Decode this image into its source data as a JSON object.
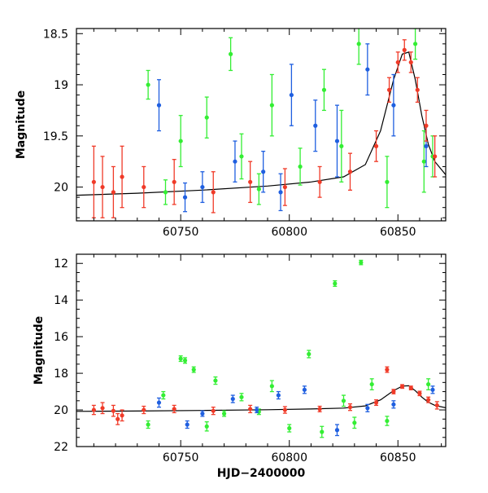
{
  "chart_data": [
    {
      "type": "scatter",
      "panel": "top",
      "xlabel": "",
      "ylabel": "Magnitude",
      "xlim": [
        60702,
        60872
      ],
      "ylim": [
        20.33,
        18.45
      ],
      "y_inverted": true,
      "x_ticks": [
        60750,
        60800,
        60850
      ],
      "x_tick_labels": [
        "60750",
        "60800",
        "60850"
      ],
      "y_ticks": [
        18.5,
        19,
        19.5,
        20
      ],
      "y_tick_labels": [
        "18.5",
        "19",
        "19.5",
        "20"
      ],
      "grid": false,
      "legend": "none",
      "model_curve": {
        "x": [
          60702,
          60730,
          60760,
          60790,
          60810,
          60825,
          60835,
          60842,
          60848,
          60852,
          60855,
          60858,
          60861,
          60864,
          60867,
          60872
        ],
        "y": [
          20.08,
          20.06,
          20.03,
          19.99,
          19.95,
          19.9,
          19.78,
          19.45,
          18.95,
          18.7,
          18.68,
          18.95,
          19.3,
          19.58,
          19.75,
          19.88
        ]
      },
      "series": [
        {
          "color": "#33ee33",
          "points": [
            {
              "x": 60735,
              "y": 19.0,
              "err": 0.14
            },
            {
              "x": 60750,
              "y": 19.55,
              "err": 0.25
            },
            {
              "x": 60762,
              "y": 19.32,
              "err": 0.2
            },
            {
              "x": 60773,
              "y": 18.7,
              "err": 0.16
            },
            {
              "x": 60778,
              "y": 19.7,
              "err": 0.22
            },
            {
              "x": 60792,
              "y": 19.2,
              "err": 0.3
            },
            {
              "x": 60805,
              "y": 19.8,
              "err": 0.18
            },
            {
              "x": 60816,
              "y": 19.05,
              "err": 0.2
            },
            {
              "x": 60824,
              "y": 19.6,
              "err": 0.35
            },
            {
              "x": 60832,
              "y": 18.6,
              "err": 0.2
            },
            {
              "x": 60845,
              "y": 19.95,
              "err": 0.25
            },
            {
              "x": 60858,
              "y": 18.6,
              "err": 0.15
            },
            {
              "x": 60862,
              "y": 19.75,
              "err": 0.3
            },
            {
              "x": 60866,
              "y": 19.7,
              "err": 0.2
            },
            {
              "x": 60743,
              "y": 20.05,
              "err": 0.12
            },
            {
              "x": 60786,
              "y": 20.02,
              "err": 0.15
            }
          ]
        },
        {
          "color": "#1f5fe0",
          "points": [
            {
              "x": 60740,
              "y": 19.2,
              "err": 0.25
            },
            {
              "x": 60760,
              "y": 20.0,
              "err": 0.15
            },
            {
              "x": 60775,
              "y": 19.75,
              "err": 0.2
            },
            {
              "x": 60788,
              "y": 19.85,
              "err": 0.2
            },
            {
              "x": 60801,
              "y": 19.1,
              "err": 0.3
            },
            {
              "x": 60812,
              "y": 19.4,
              "err": 0.25
            },
            {
              "x": 60822,
              "y": 19.55,
              "err": 0.35
            },
            {
              "x": 60836,
              "y": 18.85,
              "err": 0.25
            },
            {
              "x": 60848,
              "y": 19.2,
              "err": 0.3
            },
            {
              "x": 60863,
              "y": 19.6,
              "err": 0.2
            },
            {
              "x": 60752,
              "y": 20.1,
              "err": 0.14
            },
            {
              "x": 60796,
              "y": 20.05,
              "err": 0.18
            }
          ]
        },
        {
          "color": "#f03a28",
          "points": [
            {
              "x": 60710,
              "y": 19.95,
              "err": 0.35
            },
            {
              "x": 60714,
              "y": 20.0,
              "err": 0.3
            },
            {
              "x": 60719,
              "y": 20.05,
              "err": 0.25
            },
            {
              "x": 60723,
              "y": 19.9,
              "err": 0.3
            },
            {
              "x": 60733,
              "y": 20.0,
              "err": 0.2
            },
            {
              "x": 60747,
              "y": 19.95,
              "err": 0.22
            },
            {
              "x": 60765,
              "y": 20.05,
              "err": 0.2
            },
            {
              "x": 60782,
              "y": 19.95,
              "err": 0.2
            },
            {
              "x": 60798,
              "y": 20.0,
              "err": 0.18
            },
            {
              "x": 60814,
              "y": 19.95,
              "err": 0.15
            },
            {
              "x": 60828,
              "y": 19.85,
              "err": 0.18
            },
            {
              "x": 60840,
              "y": 19.6,
              "err": 0.15
            },
            {
              "x": 60846,
              "y": 19.05,
              "err": 0.12
            },
            {
              "x": 60850,
              "y": 18.78,
              "err": 0.1
            },
            {
              "x": 60853,
              "y": 18.66,
              "err": 0.1
            },
            {
              "x": 60856,
              "y": 18.78,
              "err": 0.1
            },
            {
              "x": 60859,
              "y": 19.05,
              "err": 0.12
            },
            {
              "x": 60863,
              "y": 19.4,
              "err": 0.15
            },
            {
              "x": 60867,
              "y": 19.7,
              "err": 0.2
            }
          ]
        }
      ]
    },
    {
      "type": "scatter",
      "panel": "bottom",
      "xlabel": "HJD−2400000",
      "ylabel": "Magnitude",
      "xlim": [
        60702,
        60872
      ],
      "ylim": [
        22,
        11.5
      ],
      "y_inverted": true,
      "x_ticks": [
        60750,
        60800,
        60850
      ],
      "x_tick_labels": [
        "60750",
        "60800",
        "60850"
      ],
      "y_ticks": [
        12,
        14,
        16,
        18,
        20,
        22
      ],
      "y_tick_labels": [
        "12",
        "14",
        "16",
        "18",
        "20",
        "22"
      ],
      "grid": false,
      "legend": "none",
      "model_curve": {
        "x": [
          60702,
          60730,
          60760,
          60790,
          60810,
          60825,
          60835,
          60842,
          60848,
          60852,
          60855,
          60858,
          60861,
          60864,
          60867,
          60872
        ],
        "y": [
          20.08,
          20.06,
          20.03,
          19.99,
          19.95,
          19.9,
          19.78,
          19.45,
          18.95,
          18.7,
          18.68,
          18.95,
          19.3,
          19.58,
          19.75,
          19.88
        ]
      },
      "series": [
        {
          "color": "#33ee33",
          "points": [
            {
              "x": 60833,
              "y": 11.95,
              "err": 0.12
            },
            {
              "x": 60821,
              "y": 13.1,
              "err": 0.15
            },
            {
              "x": 60750,
              "y": 17.2,
              "err": 0.15
            },
            {
              "x": 60752,
              "y": 17.3,
              "err": 0.15
            },
            {
              "x": 60756,
              "y": 17.8,
              "err": 0.15
            },
            {
              "x": 60766,
              "y": 18.4,
              "err": 0.2
            },
            {
              "x": 60809,
              "y": 16.95,
              "err": 0.2
            },
            {
              "x": 60792,
              "y": 18.7,
              "err": 0.3
            },
            {
              "x": 60838,
              "y": 18.6,
              "err": 0.3
            },
            {
              "x": 60864,
              "y": 18.6,
              "err": 0.3
            },
            {
              "x": 60742,
              "y": 19.2,
              "err": 0.2
            },
            {
              "x": 60778,
              "y": 19.3,
              "err": 0.2
            },
            {
              "x": 60825,
              "y": 19.5,
              "err": 0.3
            },
            {
              "x": 60735,
              "y": 20.8,
              "err": 0.2
            },
            {
              "x": 60762,
              "y": 20.9,
              "err": 0.25
            },
            {
              "x": 60800,
              "y": 21.0,
              "err": 0.2
            },
            {
              "x": 60815,
              "y": 21.2,
              "err": 0.3
            },
            {
              "x": 60830,
              "y": 20.7,
              "err": 0.3
            },
            {
              "x": 60845,
              "y": 20.6,
              "err": 0.25
            },
            {
              "x": 60770,
              "y": 20.2,
              "err": 0.15
            },
            {
              "x": 60786,
              "y": 20.1,
              "err": 0.15
            }
          ]
        },
        {
          "color": "#1f5fe0",
          "points": [
            {
              "x": 60740,
              "y": 19.6,
              "err": 0.25
            },
            {
              "x": 60753,
              "y": 20.8,
              "err": 0.2
            },
            {
              "x": 60774,
              "y": 19.4,
              "err": 0.2
            },
            {
              "x": 60795,
              "y": 19.2,
              "err": 0.2
            },
            {
              "x": 60807,
              "y": 18.9,
              "err": 0.2
            },
            {
              "x": 60822,
              "y": 21.1,
              "err": 0.3
            },
            {
              "x": 60836,
              "y": 19.9,
              "err": 0.2
            },
            {
              "x": 60848,
              "y": 19.7,
              "err": 0.2
            },
            {
              "x": 60866,
              "y": 18.9,
              "err": 0.2
            },
            {
              "x": 60760,
              "y": 20.2,
              "err": 0.15
            },
            {
              "x": 60785,
              "y": 20.0,
              "err": 0.15
            }
          ]
        },
        {
          "color": "#f03a28",
          "points": [
            {
              "x": 60710,
              "y": 20.0,
              "err": 0.25
            },
            {
              "x": 60714,
              "y": 19.9,
              "err": 0.3
            },
            {
              "x": 60719,
              "y": 20.05,
              "err": 0.3
            },
            {
              "x": 60721,
              "y": 20.5,
              "err": 0.3
            },
            {
              "x": 60723,
              "y": 20.3,
              "err": 0.3
            },
            {
              "x": 60733,
              "y": 20.0,
              "err": 0.2
            },
            {
              "x": 60747,
              "y": 19.95,
              "err": 0.2
            },
            {
              "x": 60765,
              "y": 20.05,
              "err": 0.2
            },
            {
              "x": 60782,
              "y": 19.95,
              "err": 0.2
            },
            {
              "x": 60798,
              "y": 20.0,
              "err": 0.18
            },
            {
              "x": 60814,
              "y": 19.95,
              "err": 0.15
            },
            {
              "x": 60828,
              "y": 19.85,
              "err": 0.18
            },
            {
              "x": 60840,
              "y": 19.6,
              "err": 0.15
            },
            {
              "x": 60845,
              "y": 17.8,
              "err": 0.15
            },
            {
              "x": 60848,
              "y": 19.0,
              "err": 0.12
            },
            {
              "x": 60852,
              "y": 18.72,
              "err": 0.1
            },
            {
              "x": 60856,
              "y": 18.8,
              "err": 0.1
            },
            {
              "x": 60860,
              "y": 19.1,
              "err": 0.12
            },
            {
              "x": 60864,
              "y": 19.45,
              "err": 0.15
            },
            {
              "x": 60868,
              "y": 19.75,
              "err": 0.2
            }
          ]
        }
      ]
    }
  ]
}
